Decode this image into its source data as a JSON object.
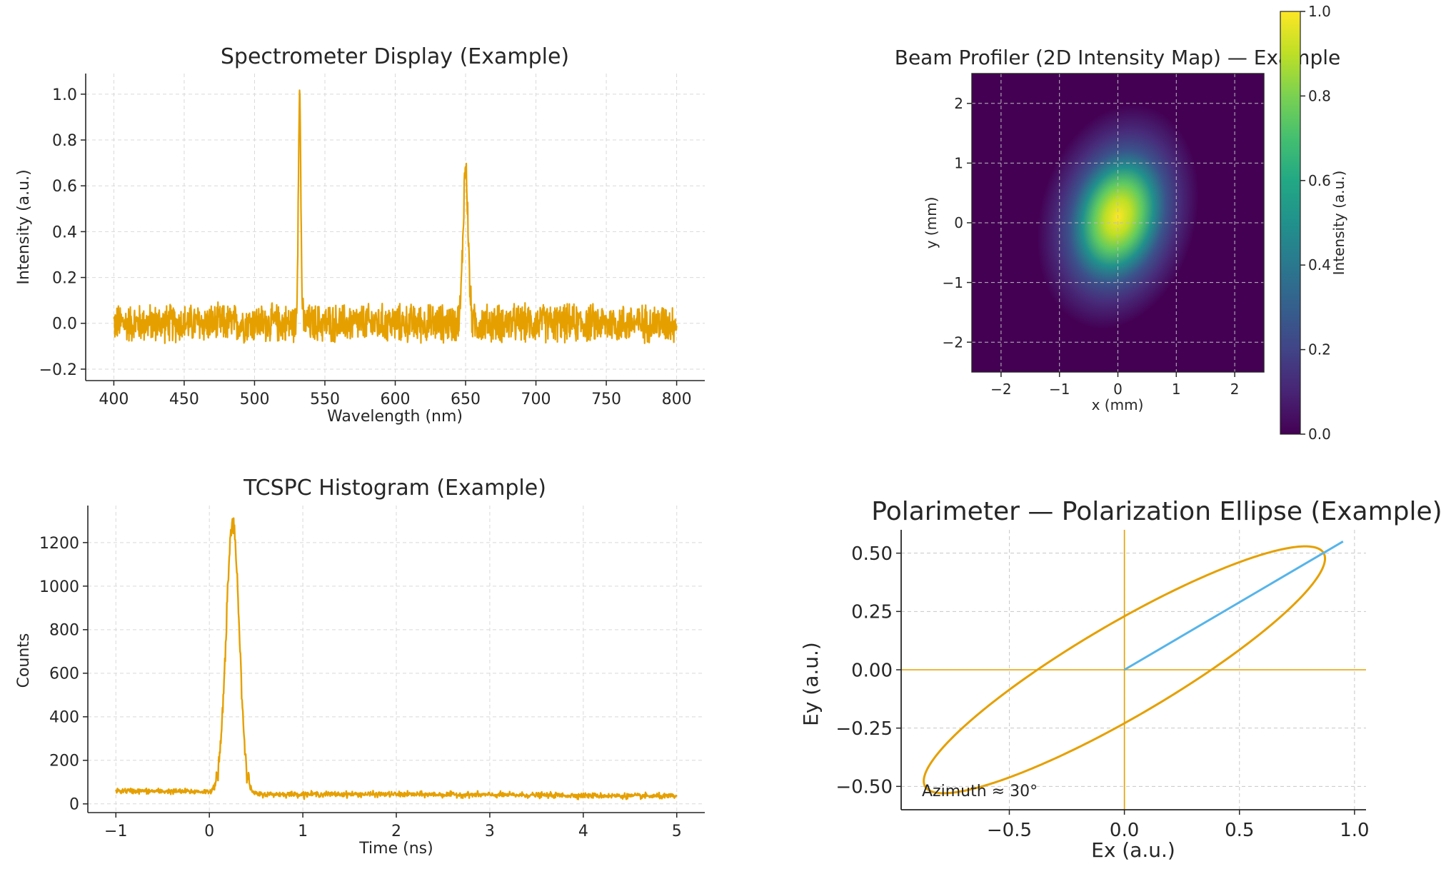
{
  "colors": {
    "trace": "#E5A000",
    "direction": "#56B4E9",
    "grid": "#d9d9d9",
    "axis": "#262626",
    "colormap": "viridis"
  },
  "chart_data": [
    {
      "id": "spectrometer",
      "type": "line",
      "title": "Spectrometer Display (Example)",
      "xlabel": "Wavelength (nm)",
      "ylabel": "Intensity (a.u.)",
      "xlim": [
        380,
        820
      ],
      "ylim": [
        -0.25,
        1.09
      ],
      "xticks": [
        400,
        450,
        500,
        550,
        600,
        650,
        700,
        750,
        800
      ],
      "yticks": [
        -0.2,
        0.0,
        0.2,
        0.4,
        0.6,
        0.8,
        1.0
      ],
      "ytick_labels": [
        "−0.2",
        "0.0",
        "0.2",
        "0.4",
        "0.6",
        "0.8",
        "1.0"
      ],
      "grid": true,
      "x_range": [
        400,
        800
      ],
      "noise_amplitude": 0.05,
      "peaks": [
        {
          "center": 532,
          "height": 1.0,
          "width": 0.9
        },
        {
          "center": 650,
          "height": 0.68,
          "width": 1.8
        }
      ]
    },
    {
      "id": "beam-profiler",
      "type": "heatmap",
      "title": "Beam Profiler (2D Intensity Map) — Example",
      "xlabel": "x (mm)",
      "ylabel": "y (mm)",
      "xlim": [
        -2.5,
        2.5
      ],
      "ylim": [
        -2.5,
        2.5
      ],
      "xticks": [
        -2,
        -1,
        0,
        1,
        2
      ],
      "yticks": [
        -2,
        -1,
        0,
        1,
        2
      ],
      "xtick_labels": [
        "−2",
        "−1",
        "0",
        "1",
        "2"
      ],
      "ytick_labels": [
        "−2",
        "−1",
        "0",
        "1",
        "2"
      ],
      "grid": true,
      "colorbar_label": "Intensity (a.u.)",
      "colorbar_range": [
        0.0,
        1.0
      ],
      "colorbar_ticks": [
        0.0,
        0.2,
        0.4,
        0.6,
        0.8,
        1.0
      ],
      "colorbar_tick_labels": [
        "0.0",
        "0.2",
        "0.4",
        "0.6",
        "0.8",
        "1.0"
      ],
      "beam": {
        "x0": 0.0,
        "y0": 0.1,
        "sigma_major": 0.75,
        "sigma_minor": 0.5,
        "angle_deg": 75
      }
    },
    {
      "id": "tcspc",
      "type": "line",
      "title": "TCSPC Histogram (Example)",
      "xlabel": "Time (ns)",
      "ylabel": "Counts",
      "xlim": [
        -1.3,
        5.3
      ],
      "ylim": [
        -40,
        1370
      ],
      "xticks": [
        -1,
        0,
        1,
        2,
        3,
        4,
        5
      ],
      "xtick_labels": [
        "−1",
        "0",
        "1",
        "2",
        "3",
        "4",
        "5"
      ],
      "yticks": [
        0,
        200,
        400,
        600,
        800,
        1000,
        1200
      ],
      "ytick_labels": [
        "0",
        "200",
        "400",
        "600",
        "800",
        "1000",
        "1200"
      ],
      "grid": true,
      "x_range": [
        -1,
        5
      ],
      "pulse": {
        "center": 0.25,
        "sigma": 0.07,
        "peak": 1240
      },
      "baseline": {
        "start": 60,
        "end": 35,
        "noise": 6
      }
    },
    {
      "id": "polarimeter",
      "type": "line",
      "title": "Polarimeter — Polarization Ellipse (Example)",
      "xlabel": "Ex (a.u.)",
      "ylabel": "Ey (a.u.)",
      "xlim": [
        -0.97,
        1.05
      ],
      "ylim": [
        -0.6,
        0.6
      ],
      "xticks": [
        -0.5,
        0.0,
        0.5,
        1.0
      ],
      "xtick_labels": [
        "−0.5",
        "0.0",
        "0.5",
        "1.0"
      ],
      "yticks": [
        -0.5,
        -0.25,
        0.0,
        0.25,
        0.5
      ],
      "ytick_labels": [
        "−0.50",
        "−0.25",
        "0.00",
        "0.25",
        "0.50"
      ],
      "grid": true,
      "ellipse": {
        "a": 1.0,
        "b": 0.2,
        "azimuth_deg": 30
      },
      "direction_line": {
        "x": [
          0.0,
          0.95
        ],
        "y": [
          0.0,
          0.55
        ]
      },
      "annotation": "Azimuth ≈ 30°"
    }
  ]
}
